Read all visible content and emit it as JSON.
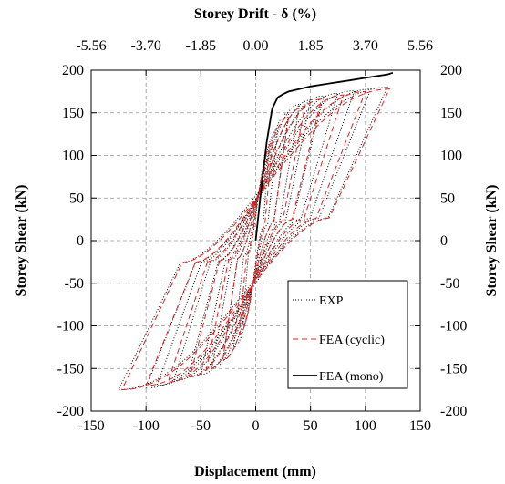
{
  "chart_data": {
    "type": "line",
    "title": "Storey Drift - δ (%)",
    "xlabel": "Displacement (mm)",
    "ylabel": "Storey Shear (kN)",
    "ylabel_right": "Storey Shear (kN)",
    "xlim": [
      -150,
      150
    ],
    "ylim": [
      -200,
      200
    ],
    "x_ticks": [
      "-150",
      "-100",
      "-50",
      "0",
      "50",
      "100",
      "150"
    ],
    "y_ticks": [
      "200",
      "150",
      "100",
      "50",
      "0",
      "-50",
      "-100",
      "-150",
      "-200"
    ],
    "top_ticks": [
      "-5.56",
      "-3.70",
      "-1.85",
      "0.00",
      "1.85",
      "3.70",
      "5.56"
    ],
    "top_tick_positions_mm": [
      -150,
      -100,
      -50,
      0,
      50,
      100,
      150
    ],
    "grid": true,
    "legend_position": "bottom-right",
    "legend": [
      "EXP",
      "FEA (cyclic)",
      "FEA (mono)"
    ],
    "series": [
      {
        "name": "EXP",
        "style": "dotted",
        "color": "#000000",
        "loops": [
          {
            "amp_pos": 12,
            "fmax": 105,
            "amp_neg": 12,
            "fmin": -100
          },
          {
            "amp_pos": 20,
            "fmax": 130,
            "amp_neg": 20,
            "fmin": -125
          },
          {
            "amp_pos": 30,
            "fmax": 150,
            "amp_neg": 30,
            "fmin": -140
          },
          {
            "amp_pos": 40,
            "fmax": 160,
            "amp_neg": 40,
            "fmin": -150
          },
          {
            "amp_pos": 50,
            "fmax": 165,
            "amp_neg": 50,
            "fmin": -157
          },
          {
            "amp_pos": 62,
            "fmax": 170,
            "amp_neg": 62,
            "fmin": -160
          },
          {
            "amp_pos": 75,
            "fmax": 173,
            "amp_neg": 75,
            "fmin": -165
          },
          {
            "amp_pos": 90,
            "fmax": 176,
            "amp_neg": 90,
            "fmin": -170
          },
          {
            "amp_pos": 105,
            "fmax": 178,
            "amp_neg": 100,
            "fmin": -173
          },
          {
            "amp_pos": 120,
            "fmax": 180,
            "amp_neg": 125,
            "fmin": -175
          }
        ]
      },
      {
        "name": "FEA (cyclic)",
        "style": "dashed",
        "color": "#e02020",
        "loops": [
          {
            "amp_pos": 15,
            "fmax": 115,
            "amp_neg": 15,
            "fmin": -110
          },
          {
            "amp_pos": 30,
            "fmax": 145,
            "amp_neg": 30,
            "fmin": -140
          },
          {
            "amp_pos": 45,
            "fmax": 158,
            "amp_neg": 45,
            "fmin": -152
          },
          {
            "amp_pos": 60,
            "fmax": 166,
            "amp_neg": 60,
            "fmin": -160
          },
          {
            "amp_pos": 80,
            "fmax": 171,
            "amp_neg": 80,
            "fmin": -166
          },
          {
            "amp_pos": 100,
            "fmax": 175,
            "amp_neg": 100,
            "fmin": -170
          },
          {
            "amp_pos": 122,
            "fmax": 178,
            "amp_neg": 122,
            "fmin": -175
          }
        ]
      },
      {
        "name": "FEA (mono)",
        "style": "solid",
        "color": "#000000",
        "x": [
          0,
          5,
          10,
          15,
          20,
          25,
          30,
          40,
          50,
          60,
          70,
          80,
          90,
          100,
          110,
          120,
          125
        ],
        "y": [
          0,
          60,
          115,
          155,
          168,
          172,
          175,
          178,
          181,
          183,
          185,
          187,
          189,
          191,
          193,
          195,
          197
        ]
      }
    ]
  }
}
